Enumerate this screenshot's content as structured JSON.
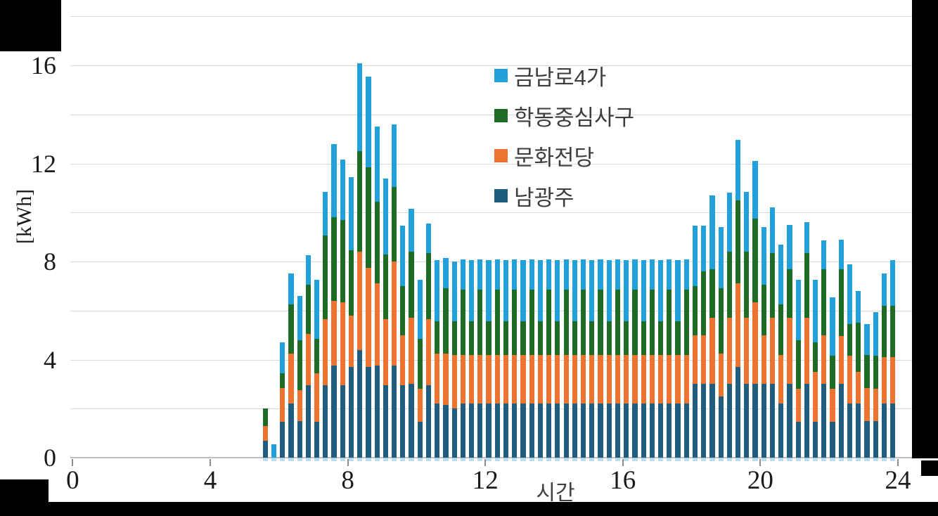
{
  "chart_data": {
    "type": "bar",
    "stacked": true,
    "title": "",
    "xlabel": "시간",
    "ylabel": "[kWh]",
    "grid": true,
    "grid_step": 2,
    "legend_position": "upper-center-inside",
    "xticks": [
      0,
      4,
      8,
      12,
      16,
      20,
      24
    ],
    "yticks": [
      0,
      4,
      8,
      12,
      16
    ],
    "xlim": [
      0,
      24.5
    ],
    "ylim": [
      0,
      18
    ],
    "bar_interval_hours": 0.25,
    "x": [
      5.5,
      5.75,
      6,
      6.25,
      6.5,
      6.75,
      7,
      7.25,
      7.5,
      7.75,
      8,
      8.25,
      8.5,
      8.75,
      9,
      9.25,
      9.5,
      9.75,
      10,
      10.25,
      10.5,
      10.75,
      11,
      11.25,
      11.5,
      11.75,
      12,
      12.25,
      12.5,
      12.75,
      13,
      13.25,
      13.5,
      13.75,
      14,
      14.25,
      14.5,
      14.75,
      15,
      15.25,
      15.5,
      15.75,
      16,
      16.25,
      16.5,
      16.75,
      17,
      17.25,
      17.5,
      17.75,
      18,
      18.25,
      18.5,
      18.75,
      19,
      19.25,
      19.5,
      19.75,
      20,
      20.25,
      20.5,
      20.75,
      21,
      21.25,
      21.5,
      21.75,
      22,
      22.25,
      22.5,
      22.75,
      23,
      23.25,
      23.5,
      23.75
    ],
    "series": [
      {
        "name": "남광주",
        "color": "#1f5c7e",
        "values": [
          0.7,
          0,
          1.45,
          2.2,
          1.5,
          2.95,
          1.45,
          2.95,
          3.75,
          2.95,
          3.7,
          4.4,
          3.7,
          3.75,
          2.95,
          3.75,
          2.95,
          3.0,
          1.45,
          2.95,
          2.2,
          2.15,
          2.0,
          2.2,
          2.2,
          2.2,
          2.2,
          2.2,
          2.2,
          2.2,
          2.2,
          2.2,
          2.2,
          2.2,
          2.2,
          2.2,
          2.2,
          2.2,
          2.2,
          2.2,
          2.2,
          2.2,
          2.2,
          2.2,
          2.2,
          2.2,
          2.2,
          2.2,
          2.2,
          2.2,
          3.0,
          3.0,
          3.0,
          2.5,
          3.0,
          3.7,
          3.0,
          3.0,
          3.0,
          3.0,
          2.2,
          3.0,
          1.45,
          3.0,
          1.45,
          3.0,
          1.45,
          3.0,
          2.2,
          2.2,
          1.5,
          1.5,
          2.2,
          2.2
        ]
      },
      {
        "name": "문화전당",
        "color": "#ec7330",
        "values": [
          0.6,
          0,
          1.4,
          2.05,
          1.25,
          2.1,
          2.0,
          2.7,
          2.65,
          3.4,
          2.1,
          4.0,
          4.05,
          3.35,
          2.7,
          4.25,
          2.05,
          2.7,
          1.35,
          2.7,
          2.05,
          2.1,
          2.2,
          2.0,
          2.0,
          2.0,
          2.0,
          2.0,
          2.0,
          2.0,
          2.0,
          2.0,
          2.0,
          2.0,
          2.0,
          2.0,
          2.0,
          2.0,
          2.0,
          2.0,
          2.0,
          2.0,
          2.0,
          2.0,
          2.0,
          2.0,
          2.0,
          2.0,
          2.0,
          2.0,
          2.0,
          2.0,
          2.7,
          1.75,
          2.7,
          3.4,
          2.7,
          3.35,
          2.0,
          2.7,
          2.0,
          2.7,
          1.35,
          2.7,
          2.05,
          2.0,
          1.35,
          1.95,
          1.95,
          1.3,
          1.35,
          1.3,
          1.9,
          1.9
        ]
      },
      {
        "name": "학동중심사구",
        "color": "#1e6b26",
        "values": [
          0.7,
          0,
          0.6,
          2.0,
          2.05,
          2.0,
          1.4,
          3.4,
          3.4,
          3.35,
          2.65,
          4.1,
          4.1,
          3.35,
          2.65,
          3.05,
          2.0,
          2.7,
          2.05,
          2.7,
          1.3,
          2.65,
          1.35,
          2.65,
          1.35,
          2.65,
          1.35,
          2.65,
          1.35,
          2.65,
          1.35,
          2.65,
          1.35,
          2.65,
          1.35,
          2.65,
          1.35,
          2.65,
          1.35,
          2.65,
          1.35,
          2.65,
          1.35,
          2.65,
          1.35,
          2.65,
          1.35,
          2.65,
          1.35,
          2.65,
          2.0,
          2.6,
          2.0,
          2.65,
          2.7,
          3.4,
          2.7,
          3.4,
          2.05,
          2.65,
          2.05,
          2.0,
          2.0,
          2.65,
          1.2,
          2.7,
          1.35,
          2.75,
          1.3,
          2.0,
          1.35,
          1.35,
          2.1,
          2.1
        ]
      },
      {
        "name": "금남로4가",
        "color": "#22a0da",
        "values": [
          0,
          0.55,
          1.25,
          1.25,
          1.8,
          1.2,
          2.4,
          1.8,
          3.0,
          2.45,
          3.0,
          3.6,
          3.7,
          3.05,
          3.1,
          2.55,
          2.45,
          1.75,
          2.4,
          1.2,
          2.5,
          1.25,
          2.45,
          1.25,
          2.5,
          1.25,
          2.5,
          1.25,
          2.5,
          1.25,
          2.5,
          1.25,
          2.5,
          1.25,
          2.5,
          1.25,
          2.5,
          1.25,
          2.5,
          1.25,
          2.5,
          1.25,
          2.5,
          1.25,
          2.5,
          1.25,
          2.5,
          1.25,
          2.5,
          1.25,
          2.45,
          1.85,
          3.0,
          2.5,
          2.4,
          2.45,
          2.45,
          2.35,
          2.35,
          1.85,
          2.45,
          1.8,
          2.45,
          1.25,
          2.55,
          1.15,
          2.4,
          1.2,
          2.45,
          1.3,
          1.25,
          1.8,
          1.3,
          1.85
        ]
      }
    ],
    "legend_display_order": [
      3,
      2,
      1,
      0
    ]
  }
}
